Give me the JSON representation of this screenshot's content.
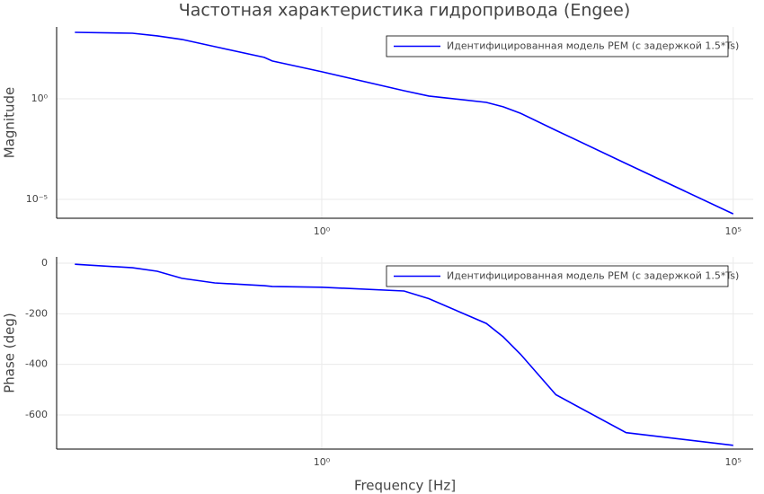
{
  "chart_data": [
    {
      "type": "line",
      "title": "Частотная характеристика гидропривода (Engee)",
      "ylabel": "Magnitude",
      "xscale": "log",
      "yscale": "log",
      "grid": true,
      "legend": "upper right",
      "x": [
        0.001,
        0.005,
        0.01,
        0.02,
        0.05,
        0.2,
        0.25,
        1,
        10,
        20,
        100,
        160,
        260,
        700,
        5000,
        100000
      ],
      "series": [
        {
          "name": "Идентифицированная модель PEM (с задержкой 1.5*Ts)",
          "color": "#0000ff",
          "values": [
            2000,
            1800,
            1340,
            890,
            390,
            113,
            75,
            22,
            2.5,
            1.36,
            0.66,
            0.4,
            0.19,
            0.027,
            0.0006,
            1.9e-06
          ]
        }
      ],
      "xlim": [
        0.0006,
        175000
      ],
      "ylim": [
        1.15e-06,
        3700
      ],
      "xticks": [
        {
          "value": 1,
          "label": "10⁰"
        },
        {
          "value": 100000,
          "label": "10⁵"
        }
      ],
      "yticks": [
        {
          "value": 1e-05,
          "label": "10⁻⁵"
        },
        {
          "value": 1,
          "label": "10⁰"
        }
      ]
    },
    {
      "type": "line",
      "xlabel": "Frequency [Hz]",
      "ylabel": "Phase (deg)",
      "xscale": "log",
      "grid": true,
      "legend": "upper right",
      "x": [
        0.001,
        0.005,
        0.01,
        0.02,
        0.05,
        0.2,
        0.25,
        1,
        10,
        20,
        100,
        160,
        260,
        700,
        5000,
        100000
      ],
      "series": [
        {
          "name": "Идентифицированная модель PEM (с задержкой 1.5*Ts)",
          "color": "#0000ff",
          "values": [
            -4,
            -18,
            -32,
            -60,
            -78,
            -89,
            -92,
            -95,
            -110,
            -140,
            -238,
            -291,
            -360,
            -520,
            -670,
            -720
          ]
        }
      ],
      "xlim": [
        0.0006,
        175000
      ],
      "ylim": [
        -735,
        25
      ],
      "xticks": [
        {
          "value": 1,
          "label": "10⁰"
        },
        {
          "value": 100000,
          "label": "10⁵"
        }
      ],
      "yticks": [
        0,
        -200,
        -400,
        -600
      ]
    }
  ]
}
